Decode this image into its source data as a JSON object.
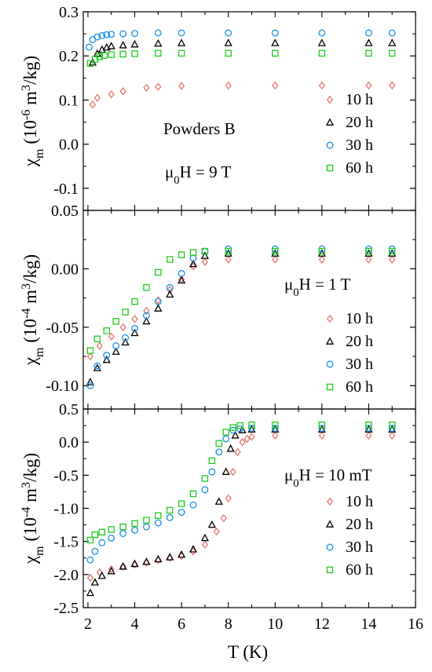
{
  "colors": {
    "10 h": "#e8756f",
    "20 h": "#000000",
    "30 h": "#1a8fe6",
    "60 h": "#1fcc1f"
  },
  "markers": {
    "10 h": "diamond",
    "20 h": "triangle",
    "30 h": "circle",
    "60 h": "square"
  },
  "chart_data": [
    {
      "type": "scatter",
      "panel": "top",
      "ylabel": "χm (10-6 m3/kg)",
      "ylabel_parts": {
        "chi": "χ",
        "sub": "m",
        "pre": " (10",
        "exp": "-6",
        "mid": " m",
        "exp2": "3",
        "post": "/kg)"
      },
      "annotations": [
        "Powders B",
        "μ0H = 9 T"
      ],
      "annotation_parts": {
        "mu": "μ",
        "sub": "0",
        "rest": "H = 9 T"
      },
      "xlim": [
        1.8,
        16
      ],
      "ylim": [
        -0.15,
        0.3
      ],
      "yticks": [
        -0.1,
        0.0,
        0.1,
        0.2,
        0.3
      ],
      "ytick_labels": [
        "-0.1",
        "0.0",
        "0.1",
        "0.2",
        "0.3"
      ],
      "legend": [
        "10 h",
        "20 h",
        "30 h",
        "60 h"
      ],
      "legend_position": "lower-right",
      "series": [
        {
          "name": "10 h",
          "x": [
            2.2,
            2.4,
            3.0,
            3.5,
            4.5,
            5.0,
            6.0,
            8.0,
            10.0,
            12.0,
            14.0,
            15.0
          ],
          "y": [
            0.09,
            0.105,
            0.113,
            0.12,
            0.128,
            0.13,
            0.132,
            0.133,
            0.133,
            0.133,
            0.133,
            0.133
          ]
        },
        {
          "name": "20 h",
          "x": [
            2.2,
            2.4,
            2.6,
            2.8,
            3.0,
            3.5,
            4.0,
            5.0,
            6.0,
            8.0,
            10.0,
            12.0,
            14.0,
            15.0
          ],
          "y": [
            0.185,
            0.205,
            0.214,
            0.219,
            0.222,
            0.224,
            0.226,
            0.228,
            0.229,
            0.229,
            0.229,
            0.229,
            0.229,
            0.229
          ]
        },
        {
          "name": "30 h",
          "x": [
            2.05,
            2.2,
            2.4,
            2.6,
            2.8,
            3.0,
            3.5,
            4.0,
            5.0,
            6.0,
            8.0,
            10.0,
            12.0,
            14.0,
            15.0
          ],
          "y": [
            0.22,
            0.237,
            0.243,
            0.246,
            0.248,
            0.249,
            0.25,
            0.251,
            0.252,
            0.252,
            0.252,
            0.252,
            0.252,
            0.252,
            0.252
          ]
        },
        {
          "name": "60 h",
          "x": [
            2.1,
            2.3,
            2.5,
            2.7,
            3.0,
            3.5,
            4.0,
            5.0,
            6.0,
            8.0,
            10.0,
            12.0,
            14.0,
            15.0
          ],
          "y": [
            0.183,
            0.192,
            0.198,
            0.201,
            0.203,
            0.204,
            0.205,
            0.206,
            0.206,
            0.206,
            0.206,
            0.206,
            0.206,
            0.206
          ]
        }
      ]
    },
    {
      "type": "scatter",
      "panel": "middle",
      "ylabel": "χm (10-4 m3/kg)",
      "ylabel_parts": {
        "chi": "χ",
        "sub": "m",
        "pre": " (10",
        "exp": "-4",
        "mid": " m",
        "exp2": "3",
        "post": "/kg)"
      },
      "annotations": [
        "μ0H = 1 T"
      ],
      "annotation_parts": {
        "mu": "μ",
        "sub": "0",
        "rest": "H = 1 T"
      },
      "xlim": [
        1.8,
        16
      ],
      "ylim": [
        -0.12,
        0.05
      ],
      "yticks": [
        -0.1,
        -0.05,
        0.0,
        0.05
      ],
      "ytick_labels": [
        "-0.10",
        "-0.05",
        "0.00",
        "0.05"
      ],
      "legend": [
        "10 h",
        "20 h",
        "30 h",
        "60 h"
      ],
      "legend_position": "lower-right",
      "series": [
        {
          "name": "10 h",
          "x": [
            2.1,
            2.5,
            3.0,
            3.5,
            4.0,
            4.5,
            5.0,
            5.5,
            6.0,
            6.5,
            7.0,
            8.0,
            10.0,
            12.0,
            14.0,
            15.0
          ],
          "y": [
            -0.075,
            -0.066,
            -0.058,
            -0.05,
            -0.043,
            -0.036,
            -0.027,
            -0.018,
            -0.009,
            0.002,
            0.006,
            0.008,
            0.008,
            0.008,
            0.008,
            0.008
          ]
        },
        {
          "name": "20 h",
          "x": [
            2.1,
            2.4,
            2.8,
            3.2,
            3.6,
            4.0,
            4.5,
            5.0,
            5.5,
            6.0,
            6.5,
            7.0,
            8.0,
            10.0,
            12.0,
            14.0,
            15.0
          ],
          "y": [
            -0.097,
            -0.085,
            -0.078,
            -0.071,
            -0.063,
            -0.055,
            -0.045,
            -0.034,
            -0.022,
            -0.01,
            0.004,
            0.011,
            0.013,
            0.013,
            0.013,
            0.013,
            0.013
          ]
        },
        {
          "name": "30 h",
          "x": [
            2.1,
            2.4,
            2.8,
            3.2,
            3.6,
            4.0,
            4.5,
            5.0,
            5.5,
            6.0,
            6.5,
            7.0,
            8.0,
            10.0,
            12.0,
            14.0,
            15.0
          ],
          "y": [
            -0.1,
            -0.083,
            -0.074,
            -0.066,
            -0.059,
            -0.051,
            -0.04,
            -0.028,
            -0.016,
            -0.004,
            0.009,
            0.015,
            0.017,
            0.017,
            0.017,
            0.017,
            0.017
          ]
        },
        {
          "name": "60 h",
          "x": [
            2.1,
            2.4,
            2.8,
            3.2,
            3.6,
            4.0,
            4.5,
            5.0,
            5.5,
            6.0,
            6.5,
            7.0,
            8.0,
            10.0,
            12.0,
            14.0,
            15.0
          ],
          "y": [
            -0.07,
            -0.06,
            -0.053,
            -0.045,
            -0.037,
            -0.028,
            -0.016,
            -0.003,
            0.008,
            0.012,
            0.014,
            0.015,
            0.015,
            0.015,
            0.015,
            0.015,
            0.015
          ]
        }
      ]
    },
    {
      "type": "scatter",
      "panel": "bottom",
      "ylabel": "χm (10-4 m3/kg)",
      "ylabel_parts": {
        "chi": "χ",
        "sub": "m",
        "pre": " (10",
        "exp": "-4",
        "mid": " m",
        "exp2": "3",
        "post": "/kg)"
      },
      "xlabel": "T (K)",
      "annotations": [
        "μ0H = 10 mT"
      ],
      "annotation_parts": {
        "mu": "μ",
        "sub": "0",
        "rest": "H = 10 mT"
      },
      "xlim": [
        1.8,
        16
      ],
      "ylim": [
        -2.5,
        0.5
      ],
      "xticks": [
        2,
        4,
        6,
        8,
        10,
        12,
        14,
        16
      ],
      "xtick_labels": [
        "2",
        "4",
        "6",
        "8",
        "10",
        "12",
        "14",
        "16"
      ],
      "yticks": [
        -2.5,
        -2.0,
        -1.5,
        -1.0,
        -0.5,
        0.0,
        0.5
      ],
      "ytick_labels": [
        "-2.5",
        "-2.0",
        "-1.5",
        "-1.0",
        "-0.5",
        "0.0",
        "0.5"
      ],
      "legend": [
        "10 h",
        "20 h",
        "30 h",
        "60 h"
      ],
      "legend_position": "lower-right",
      "series": [
        {
          "name": "10 h",
          "x": [
            2.1,
            2.5,
            3.0,
            3.5,
            4.0,
            4.5,
            5.0,
            5.5,
            6.0,
            6.5,
            7.0,
            7.5,
            7.8,
            8.0,
            8.2,
            8.4,
            8.6,
            8.8,
            9.0,
            10.0,
            12.0,
            14.0,
            15.0
          ],
          "y": [
            -2.05,
            -1.97,
            -1.92,
            -1.88,
            -1.85,
            -1.82,
            -1.78,
            -1.75,
            -1.72,
            -1.65,
            -1.55,
            -1.35,
            -1.15,
            -0.85,
            -0.45,
            -0.15,
            0.0,
            0.05,
            0.08,
            0.1,
            0.1,
            0.1,
            0.1
          ]
        },
        {
          "name": "20 h",
          "x": [
            2.1,
            2.3,
            2.6,
            3.0,
            3.5,
            4.0,
            4.5,
            5.0,
            5.5,
            6.0,
            6.5,
            7.0,
            7.3,
            7.6,
            7.9,
            8.1,
            8.3,
            8.6,
            9.0,
            10.0,
            12.0,
            14.0,
            15.0
          ],
          "y": [
            -2.28,
            -2.12,
            -2.02,
            -1.95,
            -1.88,
            -1.84,
            -1.81,
            -1.77,
            -1.74,
            -1.7,
            -1.62,
            -1.45,
            -1.25,
            -0.9,
            -0.45,
            -0.1,
            0.1,
            0.18,
            0.19,
            0.19,
            0.19,
            0.19,
            0.19
          ]
        },
        {
          "name": "30 h",
          "x": [
            2.1,
            2.3,
            2.6,
            3.0,
            3.5,
            4.0,
            4.5,
            5.0,
            5.5,
            6.0,
            6.5,
            7.0,
            7.3,
            7.6,
            7.9,
            8.2,
            8.5,
            9.0,
            10.0,
            12.0,
            14.0,
            15.0
          ],
          "y": [
            -1.78,
            -1.65,
            -1.52,
            -1.45,
            -1.38,
            -1.33,
            -1.28,
            -1.22,
            -1.14,
            -1.06,
            -0.95,
            -0.72,
            -0.45,
            -0.15,
            0.05,
            0.18,
            0.2,
            0.21,
            0.21,
            0.21,
            0.21,
            0.21
          ]
        },
        {
          "name": "60 h",
          "x": [
            2.1,
            2.3,
            2.6,
            3.0,
            3.5,
            4.0,
            4.5,
            5.0,
            5.5,
            6.0,
            6.5,
            7.0,
            7.3,
            7.6,
            7.9,
            8.2,
            8.5,
            9.0,
            10.0,
            12.0,
            14.0,
            15.0
          ],
          "y": [
            -1.48,
            -1.4,
            -1.36,
            -1.32,
            -1.28,
            -1.23,
            -1.18,
            -1.11,
            -1.03,
            -0.93,
            -0.78,
            -0.55,
            -0.28,
            -0.02,
            0.15,
            0.22,
            0.25,
            0.26,
            0.26,
            0.26,
            0.26,
            0.26
          ]
        }
      ]
    }
  ]
}
